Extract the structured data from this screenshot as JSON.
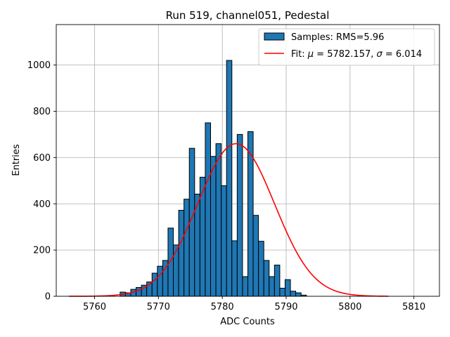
{
  "chart_data": {
    "type": "bar",
    "title": "Run 519, channel051, Pedestal",
    "xlabel": "ADC Counts",
    "ylabel": "Entries",
    "xlim": [
      5754,
      5814
    ],
    "ylim": [
      0,
      1175
    ],
    "xticks": [
      5760,
      5770,
      5780,
      5790,
      5800,
      5810
    ],
    "yticks": [
      0,
      200,
      400,
      600,
      800,
      1000
    ],
    "grid": true,
    "legend_position": "top-right",
    "histogram": {
      "name": "Samples: RMS=5.96",
      "color": "#1f77b4",
      "edge_color": "#000000",
      "bin_start": 5764,
      "bin_width": 0.8333,
      "values": [
        18,
        15,
        30,
        38,
        48,
        62,
        100,
        130,
        155,
        295,
        222,
        372,
        420,
        640,
        442,
        515,
        750,
        605,
        660,
        478,
        1020,
        240,
        700,
        85,
        712,
        350,
        238,
        155,
        85,
        135,
        35,
        72,
        22,
        15,
        5
      ]
    },
    "fit": {
      "name": "Fit: μ = 5782.157, σ = 6.014",
      "label_prefix": "Fit: ",
      "mu_symbol": "μ",
      "mu_text": " = 5782.157, ",
      "sigma_symbol": "σ",
      "sigma_text": " = 6.014",
      "color": "#ff0000",
      "mu": 5782.157,
      "sigma": 6.014,
      "amplitude": 660,
      "x_range": [
        5756,
        5806
      ]
    }
  }
}
